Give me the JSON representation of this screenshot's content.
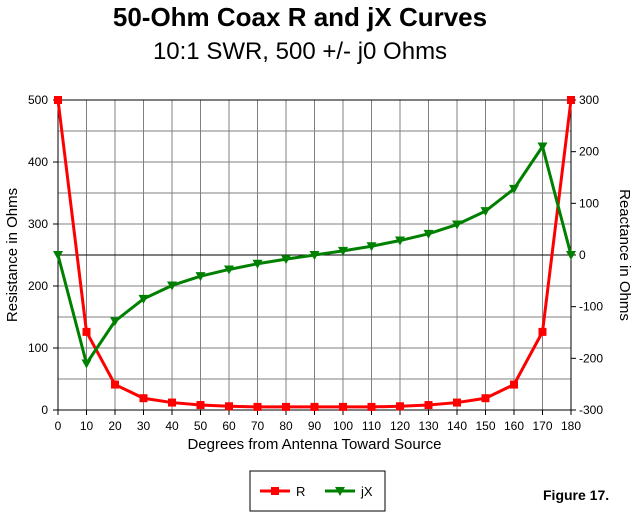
{
  "chart_data": {
    "type": "line",
    "title": "50-Ohm Coax R and jX Curves",
    "subtitle": "10:1 SWR, 500 +/- j0 Ohms",
    "xlabel": "Degrees from Antenna Toward Source",
    "ylabel": "Resistance in Ohms",
    "y2label": "Reactance in Ohms",
    "x": [
      0,
      10,
      20,
      30,
      40,
      50,
      60,
      70,
      80,
      90,
      100,
      110,
      120,
      130,
      140,
      150,
      160,
      170,
      180
    ],
    "xlim": [
      0,
      180
    ],
    "ylim": [
      0,
      500
    ],
    "y2lim": [
      -300,
      300
    ],
    "yticks": [
      0,
      100,
      200,
      300,
      400,
      500
    ],
    "y2ticks": [
      -300,
      -200,
      -100,
      0,
      100,
      200,
      300
    ],
    "y2tick_labels": [
      "-300",
      "-200",
      "-100",
      "0",
      "100",
      "200",
      "300"
    ],
    "grid": true,
    "series": [
      {
        "name": "R",
        "axis": "left",
        "color": "#ff0000",
        "marker": "square",
        "values": [
          500,
          126,
          41,
          19,
          12,
          8,
          6,
          5,
          5,
          5,
          5,
          5,
          6,
          8,
          12,
          19,
          41,
          126,
          500
        ]
      },
      {
        "name": "jX",
        "axis": "right",
        "color": "#008000",
        "marker": "triangle-down",
        "values": [
          0,
          -210,
          -128,
          -85,
          -59,
          -41,
          -28,
          -17,
          -8,
          0,
          8,
          17,
          28,
          41,
          59,
          85,
          128,
          210,
          0
        ]
      }
    ],
    "legend_position": "bottom-center"
  },
  "figure_label": "Figure 17."
}
